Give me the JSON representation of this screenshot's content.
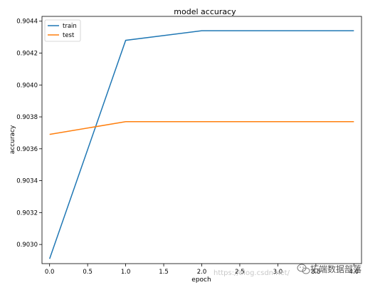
{
  "chart_data": {
    "type": "line",
    "title": "model accuracy",
    "xlabel": "epoch",
    "ylabel": "accuracy",
    "xlim": [
      -0.1,
      4.1
    ],
    "ylim": [
      0.90288,
      0.90443
    ],
    "x_ticks": [
      "0.0",
      "0.5",
      "1.0",
      "1.5",
      "2.0",
      "2.5",
      "3.0",
      "3.5",
      "4.0"
    ],
    "y_ticks": [
      "0.9030",
      "0.9032",
      "0.9034",
      "0.9036",
      "0.9038",
      "0.9040",
      "0.9042",
      "0.9044"
    ],
    "grid": false,
    "legend_position": "upper-left",
    "x": [
      0,
      1,
      2,
      3,
      4
    ],
    "series": [
      {
        "name": "train",
        "color": "#1f77b4",
        "values": [
          0.90291,
          0.90428,
          0.90434,
          0.90434,
          0.90434
        ]
      },
      {
        "name": "test",
        "color": "#ff7f0e",
        "values": [
          0.90369,
          0.90377,
          0.90377,
          0.90377,
          0.90377
        ]
      }
    ]
  },
  "watermark": {
    "url_text": "https://blog.csdn.net/",
    "brand_text": "拓端数据部落",
    "icon": "wechat-icon"
  }
}
